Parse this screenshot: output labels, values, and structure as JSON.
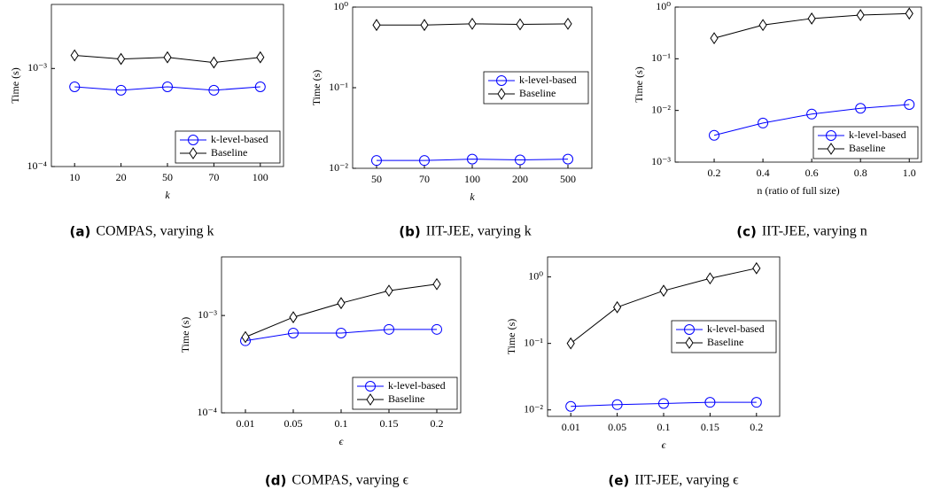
{
  "chart_data": [
    {
      "type": "line",
      "caption_tag": "(a)",
      "caption": "COMPAS, varying k",
      "xlabel": "k",
      "ylabel": "Time (s)",
      "log_y": true,
      "legend": "lower right",
      "categories": [
        "10",
        "20",
        "50",
        "70",
        "100"
      ],
      "ylim": [
        0.0001,
        0.0045
      ],
      "yticks": [
        {
          "value": 0.0001,
          "label": "10⁻⁴"
        },
        {
          "value": 0.001,
          "label": "10⁻³"
        }
      ],
      "series": [
        {
          "name": "k-level-based",
          "color": "#0000ff",
          "marker": "circle",
          "values": [
            0.00065,
            0.0006,
            0.00065,
            0.0006,
            0.00065
          ]
        },
        {
          "name": "Baseline",
          "color": "#000000",
          "marker": "diamond",
          "values": [
            0.00136,
            0.00125,
            0.0013,
            0.00115,
            0.0013
          ]
        }
      ]
    },
    {
      "type": "line",
      "caption_tag": "(b)",
      "caption": "IIT-JEE, varying k",
      "xlabel": "k",
      "ylabel": "Time (s)",
      "log_y": true,
      "legend": "center right",
      "categories": [
        "50",
        "70",
        "100",
        "200",
        "500"
      ],
      "ylim": [
        0.01,
        1
      ],
      "yticks": [
        {
          "value": 0.01,
          "label": "10⁻²"
        },
        {
          "value": 0.1,
          "label": "10⁻¹"
        },
        {
          "value": 1,
          "label": "10⁰"
        }
      ],
      "series": [
        {
          "name": "k-level-based",
          "color": "#0000ff",
          "marker": "circle",
          "values": [
            0.0125,
            0.0125,
            0.013,
            0.0127,
            0.013
          ]
        },
        {
          "name": "Baseline",
          "color": "#000000",
          "marker": "diamond",
          "values": [
            0.6,
            0.6,
            0.62,
            0.61,
            0.62
          ]
        }
      ]
    },
    {
      "type": "line",
      "caption_tag": "(c)",
      "caption": "IIT-JEE, varying n",
      "xlabel": "n (ratio of full size)",
      "ylabel": "Time (s)",
      "log_y": true,
      "legend": "lower right",
      "x": [
        0.2,
        0.4,
        0.6,
        0.8,
        1.0
      ],
      "xlim": [
        0.04,
        1.05
      ],
      "xticks": [
        0.2,
        0.4,
        0.6,
        0.8,
        {
          "value": 1,
          "label": "1.0"
        }
      ],
      "ylim": [
        0.001,
        1
      ],
      "yticks": [
        {
          "value": 0.001,
          "label": "10⁻³"
        },
        {
          "value": 0.01,
          "label": "10⁻²"
        },
        {
          "value": 0.1,
          "label": "10⁻¹"
        },
        {
          "value": 1,
          "label": "10⁰"
        }
      ],
      "series": [
        {
          "name": "k-level-based",
          "color": "#0000ff",
          "marker": "circle",
          "values": [
            0.0033,
            0.0057,
            0.0085,
            0.011,
            0.013
          ]
        },
        {
          "name": "Baseline",
          "color": "#000000",
          "marker": "diamond",
          "values": [
            0.25,
            0.45,
            0.6,
            0.7,
            0.75
          ]
        }
      ]
    },
    {
      "type": "line",
      "caption_tag": "(d)",
      "caption": "COMPAS, varying ϵ",
      "xlabel": "ϵ",
      "ylabel": "Time (s)",
      "log_y": true,
      "legend": "lower right",
      "categories": [
        "0.01",
        "0.05",
        "0.1",
        "0.15",
        "0.2"
      ],
      "ylim": [
        0.0001,
        0.004
      ],
      "yticks": [
        {
          "value": 0.0001,
          "label": "10⁻⁴"
        },
        {
          "value": 0.001,
          "label": "10⁻³"
        }
      ],
      "series": [
        {
          "name": "k-level-based",
          "color": "#0000ff",
          "marker": "circle",
          "values": [
            0.00055,
            0.00066,
            0.00066,
            0.00072,
            0.00072
          ]
        },
        {
          "name": "Baseline",
          "color": "#000000",
          "marker": "diamond",
          "values": [
            0.0006,
            0.00096,
            0.00134,
            0.0018,
            0.0021
          ]
        }
      ]
    },
    {
      "type": "line",
      "caption_tag": "(e)",
      "caption": "IIT-JEE, varying ϵ",
      "xlabel": "ϵ",
      "ylabel": "Time (s)",
      "log_y": true,
      "legend": "center right",
      "categories": [
        "0.01",
        "0.05",
        "0.1",
        "0.15",
        "0.2"
      ],
      "ylim": [
        0.008,
        2
      ],
      "yticks": [
        {
          "value": 0.01,
          "label": "10⁻²"
        },
        {
          "value": 0.1,
          "label": "10⁻¹"
        },
        {
          "value": 1,
          "label": "10⁰"
        }
      ],
      "series": [
        {
          "name": "k-level-based",
          "color": "#0000ff",
          "marker": "circle",
          "values": [
            0.0113,
            0.012,
            0.0125,
            0.013,
            0.013
          ]
        },
        {
          "name": "Baseline",
          "color": "#000000",
          "marker": "diamond",
          "values": [
            0.1,
            0.35,
            0.62,
            0.95,
            1.35
          ]
        }
      ]
    }
  ]
}
